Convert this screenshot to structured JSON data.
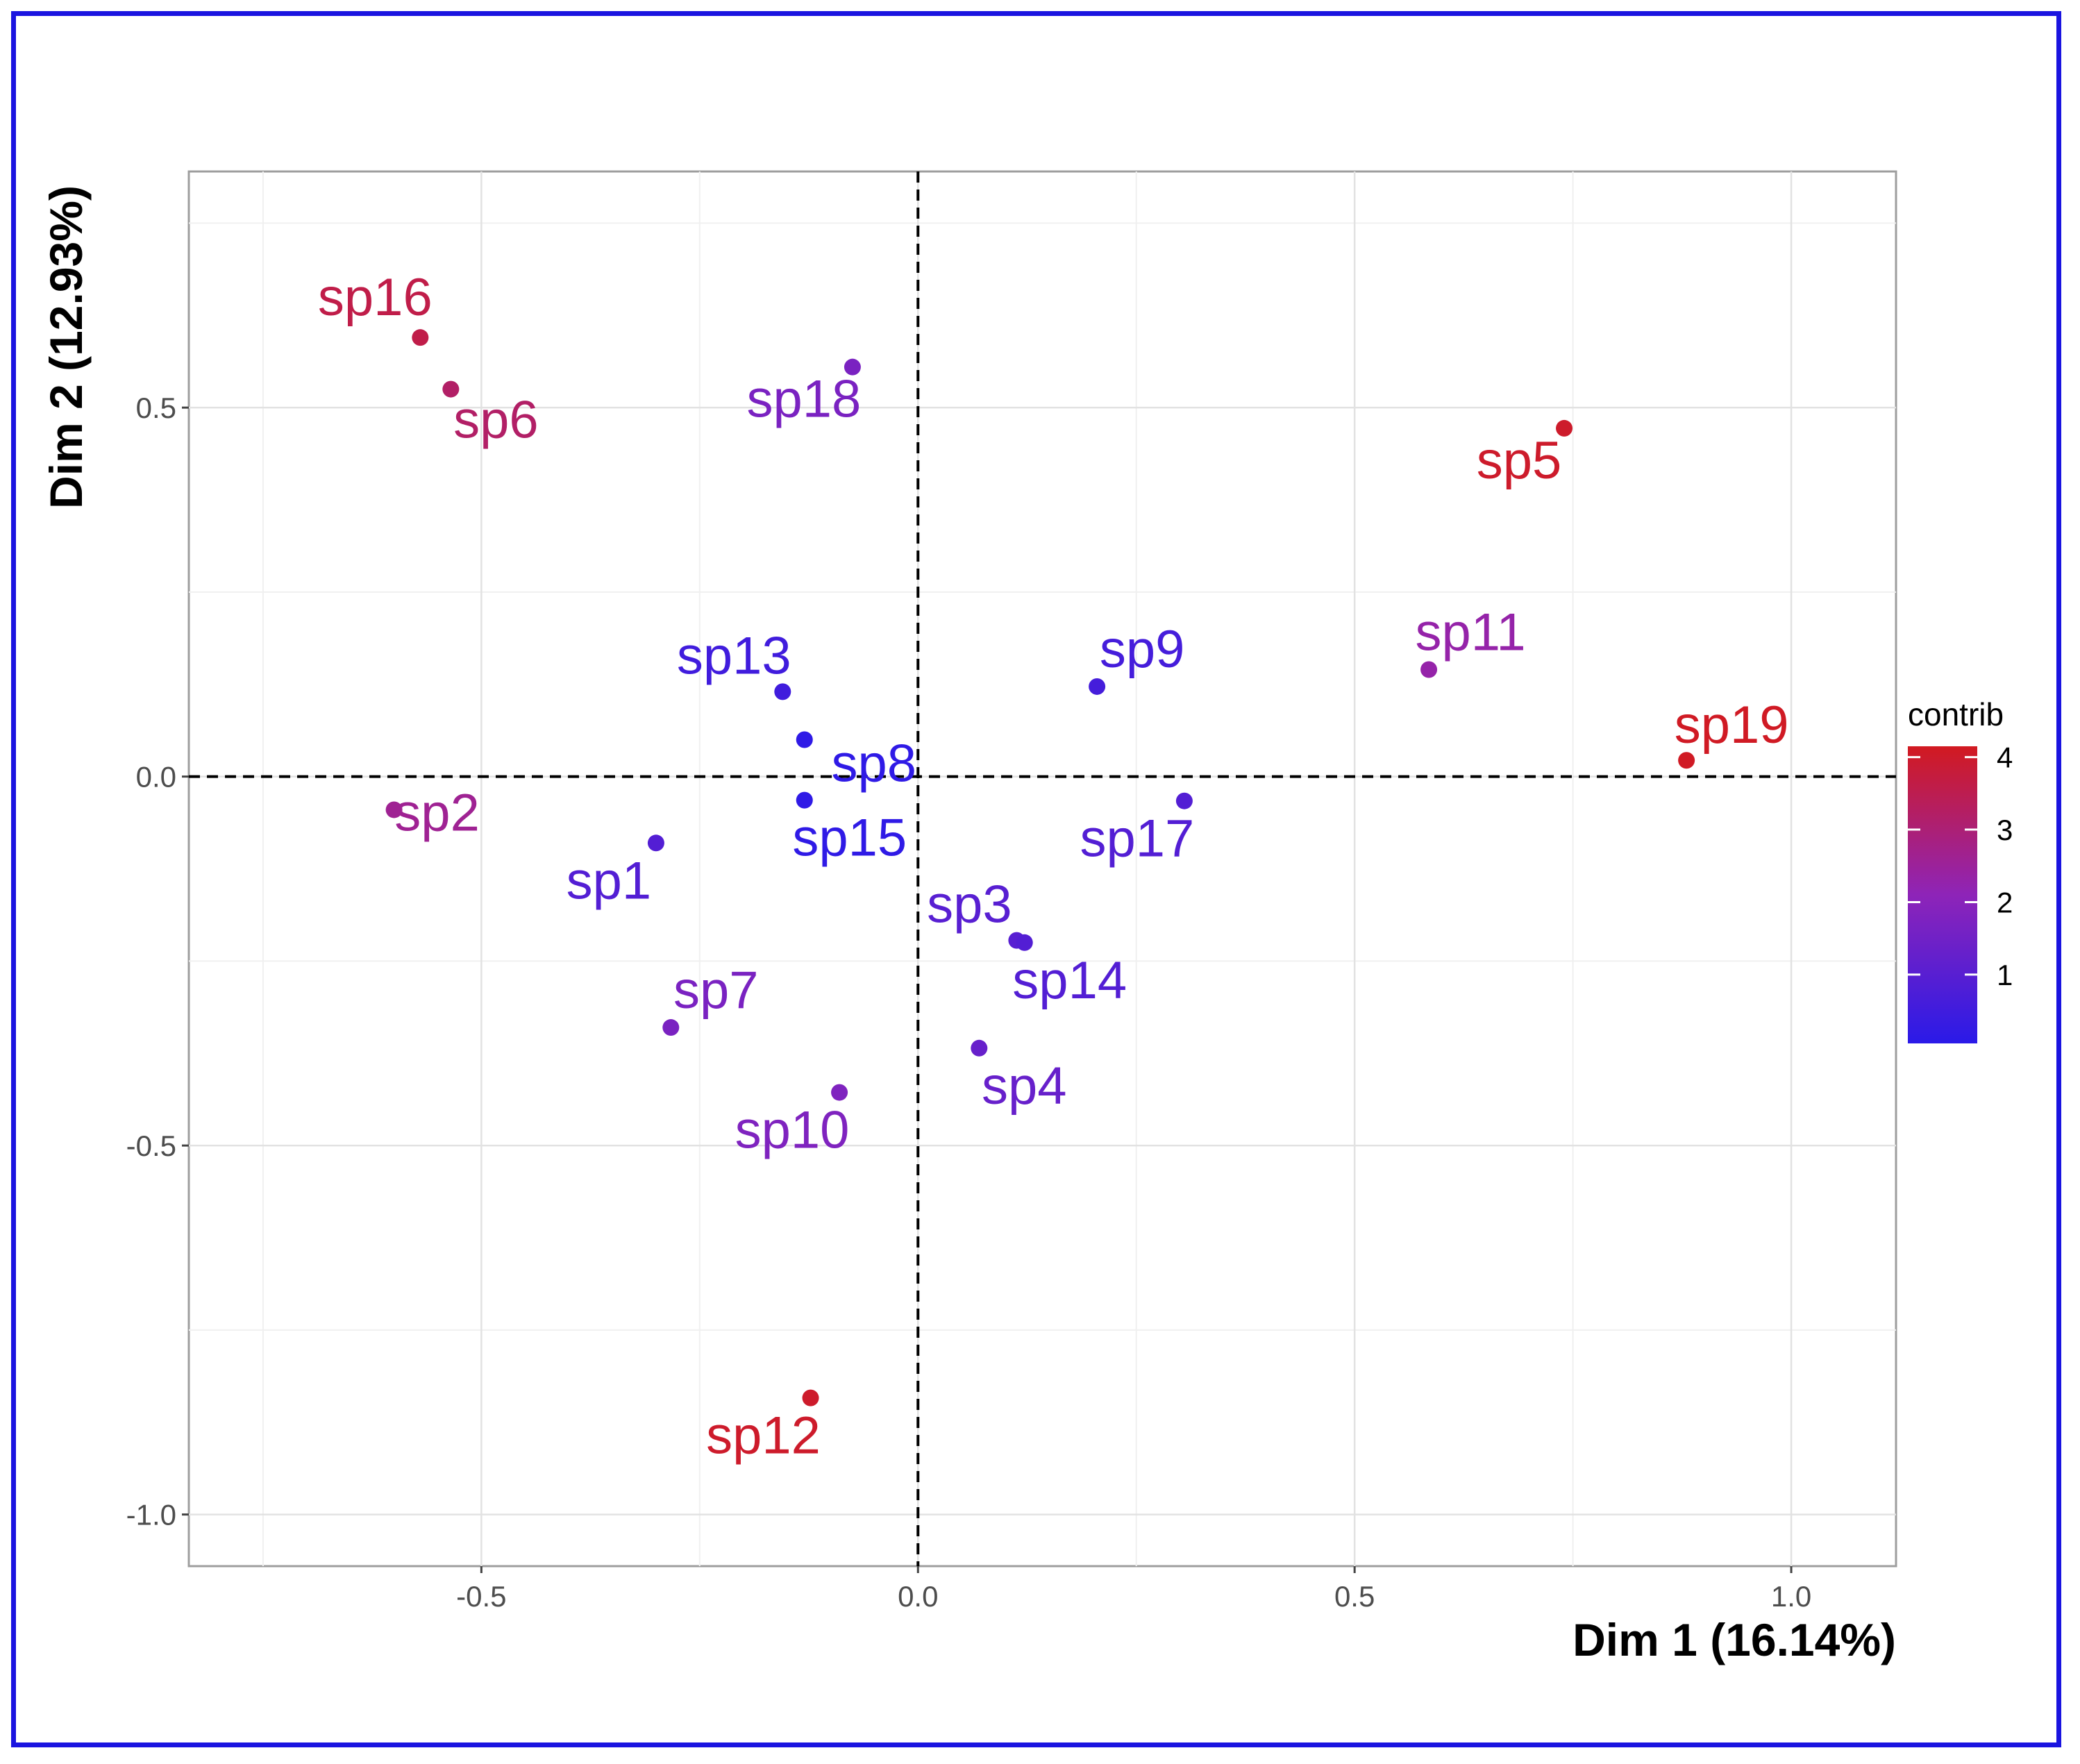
{
  "chart_data": {
    "type": "scatter",
    "title": "",
    "xlabel": "Dim 1 (16.14%)",
    "ylabel": "Dim 2 (12.93%)",
    "xlim": [
      -0.835,
      1.12
    ],
    "ylim": [
      -1.07,
      0.82
    ],
    "x_ticks": [
      -0.5,
      0.0,
      0.5,
      1.0
    ],
    "y_ticks": [
      0.5,
      0.0,
      -0.5,
      -1.0
    ],
    "x_tick_labels": [
      "-0.5",
      "0.0",
      "0.5",
      "1.0"
    ],
    "y_tick_labels": [
      "0.5",
      "0.0",
      "-0.5",
      "-1.0"
    ],
    "reference_lines": {
      "x": 0,
      "y": 0,
      "style": "dashed"
    },
    "grid": true,
    "legend": {
      "title": "contrib",
      "placement": "right",
      "ticks": [
        "1",
        "2",
        "3",
        "4"
      ],
      "tick_values": [
        1,
        2,
        3,
        4
      ],
      "range": [
        0.05,
        4.15
      ],
      "low_color": "#2a1ae8",
      "mid_color": "#8e24b8",
      "high_color": "#d21a20"
    },
    "points": [
      {
        "label": "sp16",
        "x": -0.57,
        "y": 0.595,
        "contrib": 3.6
      },
      {
        "label": "sp6",
        "x": -0.535,
        "y": 0.525,
        "contrib": 3.2
      },
      {
        "label": "sp18",
        "x": -0.075,
        "y": 0.555,
        "contrib": 1.7
      },
      {
        "label": "sp5",
        "x": 0.74,
        "y": 0.472,
        "contrib": 4.0
      },
      {
        "label": "sp13",
        "x": -0.155,
        "y": 0.115,
        "contrib": 0.5
      },
      {
        "label": "sp9",
        "x": 0.205,
        "y": 0.122,
        "contrib": 0.6
      },
      {
        "label": "sp11",
        "x": 0.585,
        "y": 0.145,
        "contrib": 2.3
      },
      {
        "label": "sp19",
        "x": 0.88,
        "y": 0.022,
        "contrib": 4.1
      },
      {
        "label": "sp8",
        "x": -0.13,
        "y": 0.05,
        "contrib": 0.15
      },
      {
        "label": "sp2",
        "x": -0.6,
        "y": -0.045,
        "contrib": 2.6
      },
      {
        "label": "sp15",
        "x": -0.13,
        "y": -0.032,
        "contrib": 0.15
      },
      {
        "label": "sp17",
        "x": 0.305,
        "y": -0.033,
        "contrib": 0.9
      },
      {
        "label": "sp1",
        "x": -0.3,
        "y": -0.09,
        "contrib": 0.9
      },
      {
        "label": "sp3",
        "x": 0.113,
        "y": -0.222,
        "contrib": 1.0
      },
      {
        "label": "sp14",
        "x": 0.122,
        "y": -0.225,
        "contrib": 0.9
      },
      {
        "label": "sp7",
        "x": -0.283,
        "y": -0.34,
        "contrib": 1.7
      },
      {
        "label": "sp4",
        "x": 0.07,
        "y": -0.368,
        "contrib": 1.3
      },
      {
        "label": "sp10",
        "x": -0.09,
        "y": -0.428,
        "contrib": 1.8
      },
      {
        "label": "sp12",
        "x": -0.123,
        "y": -0.842,
        "contrib": 4.0
      }
    ]
  }
}
